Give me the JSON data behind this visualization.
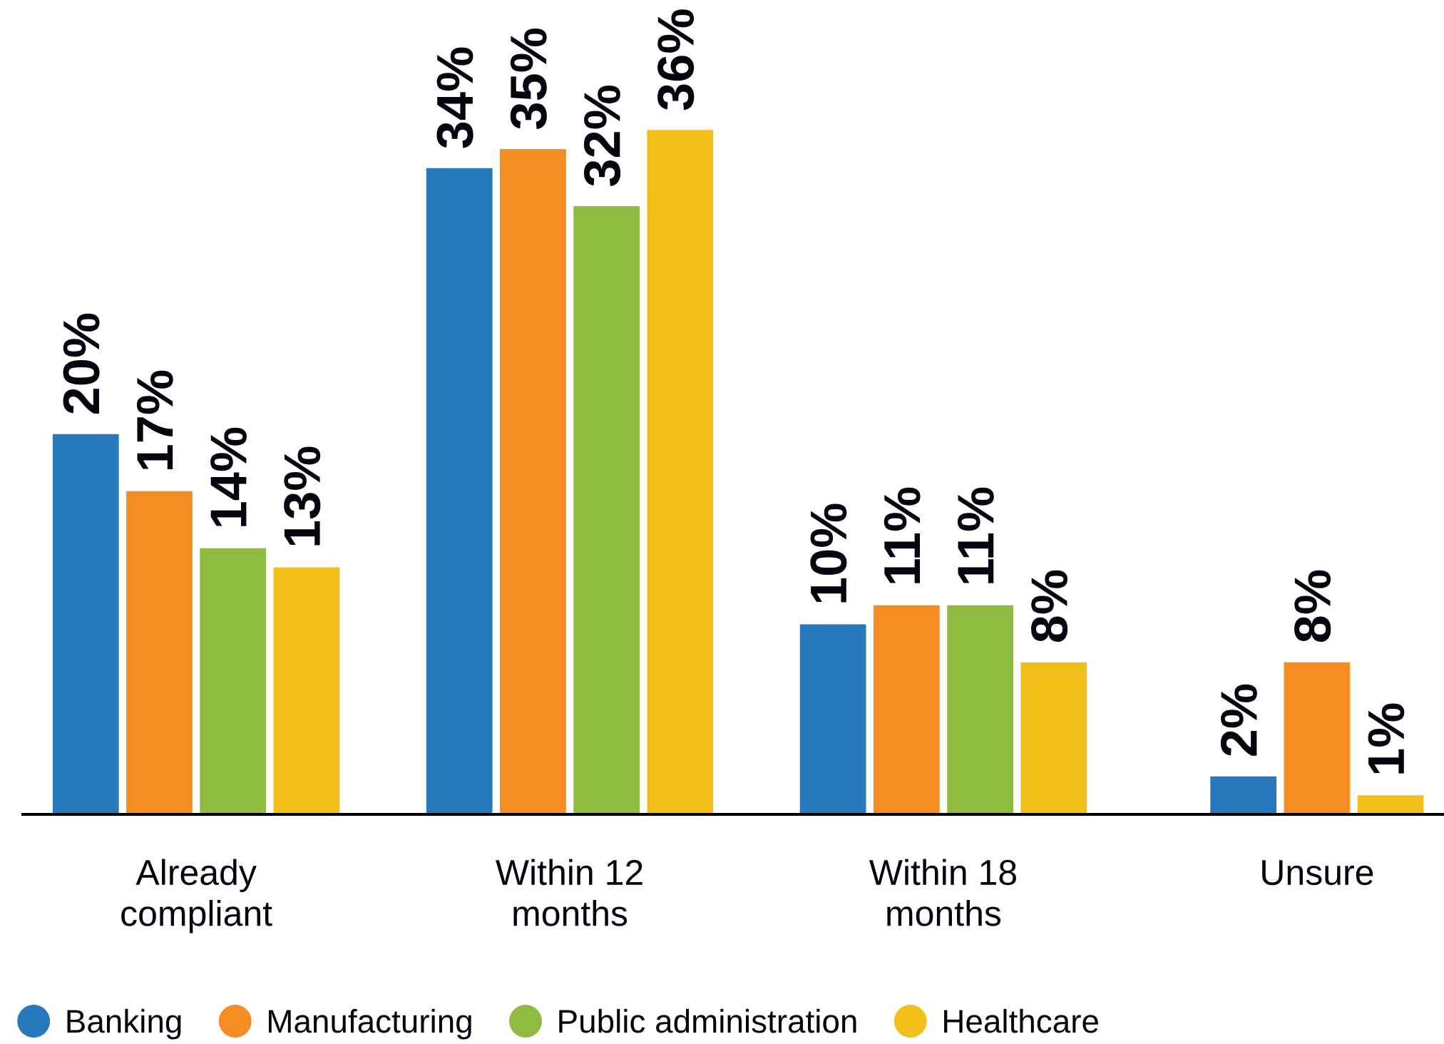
{
  "chart_data": {
    "type": "bar",
    "categories": [
      "Already\ncompliant",
      "Within 12\nmonths",
      "Within 18\nmonths",
      "Unsure"
    ],
    "series": [
      {
        "name": "Banking",
        "color": "#2779bb",
        "values": [
          20,
          34,
          10,
          2
        ],
        "value_labels": [
          "20%",
          "34%",
          "10%",
          "2%"
        ]
      },
      {
        "name": "Manufacturing",
        "color": "#f68d22",
        "values": [
          17,
          35,
          11,
          8
        ],
        "value_labels": [
          "17%",
          "35%",
          "11%",
          "8%"
        ]
      },
      {
        "name": "Public administration",
        "color": "#8fbb40",
        "values": [
          14,
          32,
          11,
          null
        ],
        "value_labels": [
          "14%",
          "32%",
          "11%",
          null
        ]
      },
      {
        "name": "Healthcare",
        "color": "#f2bf1a",
        "values": [
          13,
          36,
          8,
          1
        ],
        "value_labels": [
          "13%",
          "36%",
          "8%",
          "1%"
        ]
      }
    ],
    "legend": "bottom left"
  }
}
